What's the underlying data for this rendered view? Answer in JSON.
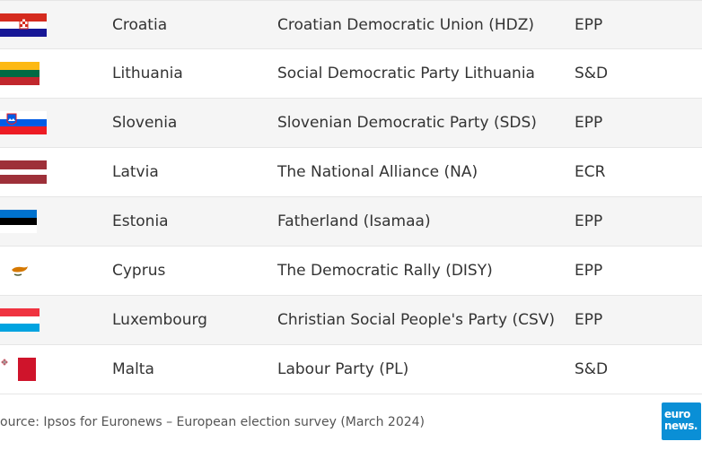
{
  "rows": [
    {
      "country": "Croatia",
      "party": "Croatian Democratic Union (HDZ)",
      "group": "EPP",
      "flag_icon": "croatia-flag-icon"
    },
    {
      "country": "Lithuania",
      "party": "Social Democratic Party Lithuania",
      "group": "S&D",
      "flag_icon": "lithuania-flag-icon"
    },
    {
      "country": "Slovenia",
      "party": "Slovenian Democratic Party (SDS)",
      "group": "EPP",
      "flag_icon": "slovenia-flag-icon"
    },
    {
      "country": "Latvia",
      "party": "The National Alliance (NA)",
      "group": "ECR",
      "flag_icon": "latvia-flag-icon"
    },
    {
      "country": "Estonia",
      "party": "Fatherland (Isamaa)",
      "group": "EPP",
      "flag_icon": "estonia-flag-icon"
    },
    {
      "country": "Cyprus",
      "party": "The Democratic Rally (DISY)",
      "group": "EPP",
      "flag_icon": "cyprus-flag-icon"
    },
    {
      "country": "Luxembourg",
      "party": "Christian Social People's Party (CSV)",
      "group": "EPP",
      "flag_icon": "luxembourg-flag-icon"
    },
    {
      "country": "Malta",
      "party": "Labour Party (PL)",
      "group": "S&D",
      "flag_icon": "malta-flag-icon"
    }
  ],
  "footer": {
    "source": "ource: Ipsos for Euronews – European election survey (March 2024)"
  },
  "logo": {
    "line1": "euro",
    "line2": "news.",
    "color": "#0a8fd6"
  }
}
